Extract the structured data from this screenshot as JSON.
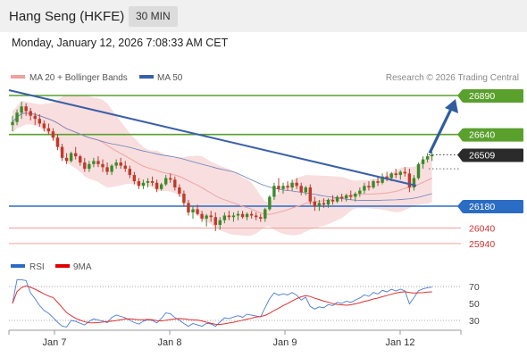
{
  "header": {
    "title": "Hang Seng (HKFE)",
    "interval": "30 MIN"
  },
  "datetime": "Monday, January 12, 2026 7:08:33 AM CET",
  "legend": {
    "ma20_bb": "MA 20 + Bollinger Bands",
    "ma50": "MA 50",
    "credit": "Research © 2026 Trading Central"
  },
  "rsi_legend": {
    "rsi": "RSI",
    "ma9": "9MA"
  },
  "colors": {
    "green": "#5aa02c",
    "blue": "#2b6cc4",
    "red": "#e06060",
    "candle_up": "#3a8a2a",
    "candle_down": "#c0392b",
    "bb_fill": "#f7d8d8",
    "trend": "#3a5fa8",
    "arrow": "#2f5d9f",
    "current": "#2b2b2b"
  },
  "chart_data": [
    {
      "type": "candlestick",
      "x_ticks": [
        "Jan 7",
        "Jan 8",
        "Jan 9",
        "Jan 12"
      ],
      "ylim": [
        25900,
        27000
      ],
      "levels": [
        {
          "value": 26890,
          "label": "26890",
          "color": "#5aa02c",
          "kind": "resistance"
        },
        {
          "value": 26640,
          "label": "26640",
          "color": "#5aa02c",
          "kind": "resistance"
        },
        {
          "value": 26509,
          "label": "26509",
          "color": "#2b2b2b",
          "kind": "current"
        },
        {
          "value": 26180,
          "label": "26180",
          "color": "#2b6cc4",
          "kind": "support"
        },
        {
          "value": 26040,
          "label": "26040",
          "color": "#e06060",
          "kind": "support"
        },
        {
          "value": 25940,
          "label": "25940",
          "color": "#e06060",
          "kind": "support"
        }
      ],
      "ohlc": [
        [
          26700,
          26760,
          26660,
          26720
        ],
        [
          26720,
          26800,
          26700,
          26780
        ],
        [
          26780,
          26850,
          26740,
          26820
        ],
        [
          26820,
          26840,
          26760,
          26790
        ],
        [
          26790,
          26810,
          26730,
          26760
        ],
        [
          26760,
          26780,
          26700,
          26740
        ],
        [
          26740,
          26770,
          26690,
          26710
        ],
        [
          26710,
          26730,
          26660,
          26680
        ],
        [
          26680,
          26710,
          26640,
          26660
        ],
        [
          26660,
          26680,
          26600,
          26620
        ],
        [
          26620,
          26640,
          26540,
          26560
        ],
        [
          26560,
          26580,
          26470,
          26490
        ],
        [
          26490,
          26520,
          26450,
          26470
        ],
        [
          26470,
          26530,
          26460,
          26520
        ],
        [
          26520,
          26560,
          26480,
          26500
        ],
        [
          26500,
          26510,
          26440,
          26460
        ],
        [
          26460,
          26490,
          26400,
          26420
        ],
        [
          26420,
          26470,
          26400,
          26450
        ],
        [
          26450,
          26490,
          26430,
          26470
        ],
        [
          26470,
          26500,
          26430,
          26450
        ],
        [
          26450,
          26480,
          26400,
          26430
        ],
        [
          26430,
          26460,
          26380,
          26400
        ],
        [
          26400,
          26450,
          26380,
          26440
        ],
        [
          26440,
          26480,
          26420,
          26460
        ],
        [
          26460,
          26490,
          26420,
          26440
        ],
        [
          26440,
          26470,
          26400,
          26420
        ],
        [
          26420,
          26440,
          26360,
          26380
        ],
        [
          26380,
          26400,
          26320,
          26340
        ],
        [
          26340,
          26360,
          26290,
          26310
        ],
        [
          26310,
          26350,
          26290,
          26330
        ],
        [
          26330,
          26360,
          26300,
          26340
        ],
        [
          26340,
          26370,
          26310,
          26330
        ],
        [
          26330,
          26350,
          26270,
          26290
        ],
        [
          26290,
          26330,
          26280,
          26320
        ],
        [
          26320,
          26380,
          26310,
          26360
        ],
        [
          26360,
          26390,
          26330,
          26350
        ],
        [
          26350,
          26370,
          26280,
          26300
        ],
        [
          26300,
          26320,
          26240,
          26260
        ],
        [
          26260,
          26280,
          26180,
          26200
        ],
        [
          26200,
          26220,
          26120,
          26140
        ],
        [
          26140,
          26180,
          26100,
          26160
        ],
        [
          26160,
          26190,
          26120,
          26130
        ],
        [
          26130,
          26150,
          26080,
          26100
        ],
        [
          26100,
          26130,
          26050,
          26120
        ],
        [
          26120,
          26150,
          26080,
          26110
        ],
        [
          26110,
          26140,
          26020,
          26060
        ],
        [
          26060,
          26110,
          26030,
          26090
        ],
        [
          26090,
          26140,
          26070,
          26120
        ],
        [
          26120,
          26150,
          26090,
          26110
        ],
        [
          26110,
          26140,
          26080,
          26120
        ],
        [
          26120,
          26150,
          26090,
          26130
        ],
        [
          26130,
          26150,
          26100,
          26110
        ],
        [
          26110,
          26140,
          26090,
          26130
        ],
        [
          26130,
          26150,
          26100,
          26120
        ],
        [
          26120,
          26140,
          26090,
          26110
        ],
        [
          26110,
          26130,
          26080,
          26100
        ],
        [
          26100,
          26170,
          26080,
          26160
        ],
        [
          26160,
          26250,
          26150,
          26240
        ],
        [
          26240,
          26330,
          26220,
          26310
        ],
        [
          26310,
          26360,
          26270,
          26290
        ],
        [
          26290,
          26330,
          26260,
          26310
        ],
        [
          26310,
          26340,
          26280,
          26300
        ],
        [
          26300,
          26350,
          26280,
          26330
        ],
        [
          26330,
          26360,
          26290,
          26310
        ],
        [
          26310,
          26330,
          26250,
          26270
        ],
        [
          26270,
          26310,
          26250,
          26300
        ],
        [
          26300,
          26320,
          26190,
          26210
        ],
        [
          26210,
          26240,
          26150,
          26180
        ],
        [
          26180,
          26220,
          26150,
          26200
        ],
        [
          26200,
          26230,
          26170,
          26190
        ],
        [
          26190,
          26230,
          26170,
          26220
        ],
        [
          26220,
          26250,
          26190,
          26210
        ],
        [
          26210,
          26250,
          26200,
          26240
        ],
        [
          26240,
          26260,
          26210,
          26230
        ],
        [
          26230,
          26260,
          26210,
          26250
        ],
        [
          26250,
          26280,
          26220,
          26240
        ],
        [
          26240,
          26270,
          26210,
          26260
        ],
        [
          26260,
          26300,
          26240,
          26280
        ],
        [
          26280,
          26330,
          26260,
          26310
        ],
        [
          26310,
          26340,
          26280,
          26300
        ],
        [
          26300,
          26350,
          26290,
          26340
        ],
        [
          26340,
          26370,
          26310,
          26330
        ],
        [
          26330,
          26390,
          26320,
          26370
        ],
        [
          26370,
          26400,
          26340,
          26360
        ],
        [
          26360,
          26400,
          26340,
          26390
        ],
        [
          26390,
          26420,
          26360,
          26380
        ],
        [
          26380,
          26410,
          26350,
          26400
        ],
        [
          26400,
          26430,
          26370,
          26390
        ],
        [
          26390,
          26420,
          26270,
          26300
        ],
        [
          26300,
          26380,
          26280,
          26360
        ],
        [
          26360,
          26460,
          26350,
          26450
        ],
        [
          26450,
          26500,
          26420,
          26480
        ],
        [
          26480,
          26520,
          26460,
          26500
        ],
        [
          26500,
          26530,
          26470,
          26509
        ]
      ],
      "projection": {
        "from": 26509,
        "to": 26890
      }
    },
    {
      "type": "line",
      "name": "RSI",
      "ylim": [
        20,
        80
      ],
      "y_ticks": [
        70,
        50,
        30
      ]
    }
  ]
}
